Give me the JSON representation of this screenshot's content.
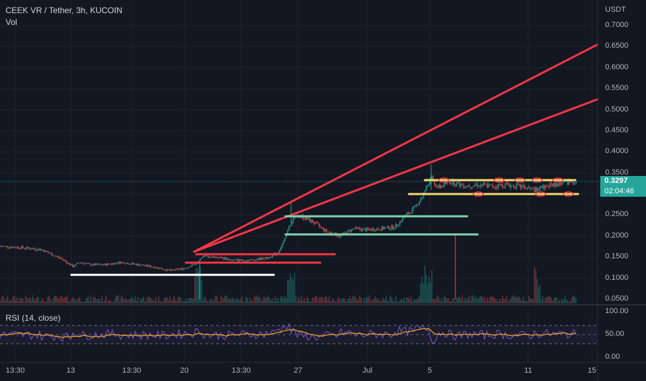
{
  "header": {
    "symbol_line": "CEEK VR / Tether, 3h, KUCOIN",
    "volume_label": "Vol"
  },
  "price_axis": {
    "currency": "USDT",
    "ticks": [
      "0.7000",
      "0.6500",
      "0.6000",
      "0.5500",
      "0.5000",
      "0.4500",
      "0.4000",
      "0.3500",
      "0.3000",
      "0.2500",
      "0.2000",
      "0.1500",
      "0.1000",
      "0.0500"
    ]
  },
  "last_price": {
    "price": "0.3297",
    "countdown": "02:04:46"
  },
  "rsi": {
    "label": "RSI (14, close)",
    "ticks": [
      "100.00",
      "50.00",
      "0.00"
    ]
  },
  "time_axis": {
    "ticks": [
      "13:30",
      "13",
      "13:30",
      "20",
      "13:30",
      "27",
      "Jul",
      "5",
      "11",
      "15"
    ]
  },
  "colors": {
    "background": "#131722",
    "up": "#26a69a",
    "down": "#ef5350",
    "trendline": "#f23645",
    "support": "#ffffff",
    "range_band": "#f5d76e",
    "level_green": "#7fd1a8",
    "rsi_line": "#7e57c2",
    "rsi_ma": "#f5a623"
  },
  "chart_data": {
    "type": "candlestick",
    "symbol": "CEEK VR / Tether",
    "interval": "3h",
    "exchange": "KUCOIN",
    "ylim": [
      0.03,
      0.73
    ],
    "y_unit": "USDT",
    "approx_close_path": [
      [
        0,
        0.176
      ],
      [
        30,
        0.173
      ],
      [
        60,
        0.168
      ],
      [
        90,
        0.145
      ],
      [
        105,
        0.128
      ],
      [
        115,
        0.138
      ],
      [
        130,
        0.132
      ],
      [
        150,
        0.132
      ],
      [
        175,
        0.138
      ],
      [
        200,
        0.132
      ],
      [
        225,
        0.126
      ],
      [
        245,
        0.118
      ],
      [
        265,
        0.123
      ],
      [
        283,
        0.135
      ],
      [
        295,
        0.152
      ],
      [
        315,
        0.15
      ],
      [
        335,
        0.143
      ],
      [
        360,
        0.143
      ],
      [
        385,
        0.148
      ],
      [
        400,
        0.16
      ],
      [
        410,
        0.188
      ],
      [
        420,
        0.235
      ],
      [
        430,
        0.25
      ],
      [
        450,
        0.235
      ],
      [
        470,
        0.212
      ],
      [
        490,
        0.2
      ],
      [
        510,
        0.218
      ],
      [
        530,
        0.215
      ],
      [
        550,
        0.218
      ],
      [
        570,
        0.222
      ],
      [
        585,
        0.248
      ],
      [
        600,
        0.27
      ],
      [
        612,
        0.305
      ],
      [
        622,
        0.338
      ],
      [
        632,
        0.315
      ],
      [
        650,
        0.33
      ],
      [
        670,
        0.32
      ],
      [
        690,
        0.322
      ],
      [
        710,
        0.318
      ],
      [
        730,
        0.322
      ],
      [
        750,
        0.318
      ],
      [
        770,
        0.31
      ],
      [
        790,
        0.32
      ],
      [
        810,
        0.325
      ],
      [
        830,
        0.33
      ]
    ],
    "drawn_lines": [
      {
        "kind": "trendline",
        "from": [
          280,
          0.163
        ],
        "to": [
          862,
          0.655
        ]
      },
      {
        "kind": "trendline",
        "from": [
          280,
          0.163
        ],
        "to": [
          862,
          0.525
        ]
      },
      {
        "kind": "horizontal",
        "y": 0.108,
        "x_from": 103,
        "x_to": 395,
        "color": "support"
      },
      {
        "kind": "horizontal",
        "y": 0.157,
        "x_from": 283,
        "x_to": 483,
        "color": "trendline"
      },
      {
        "kind": "horizontal",
        "y": 0.137,
        "x_from": 268,
        "x_to": 462,
        "color": "trendline"
      },
      {
        "kind": "horizontal",
        "y": 0.247,
        "x_from": 412,
        "x_to": 674,
        "color": "level_green"
      },
      {
        "kind": "horizontal",
        "y": 0.204,
        "x_from": 412,
        "x_to": 689,
        "color": "level_green"
      },
      {
        "kind": "horizontal",
        "y": 0.333,
        "x_from": 613,
        "x_to": 830,
        "color": "range_band"
      },
      {
        "kind": "horizontal",
        "y": 0.3,
        "x_from": 590,
        "x_to": 834,
        "color": "range_band"
      }
    ],
    "rsi_range": [
      0,
      100
    ],
    "rsi_bands": [
      70,
      30
    ]
  }
}
